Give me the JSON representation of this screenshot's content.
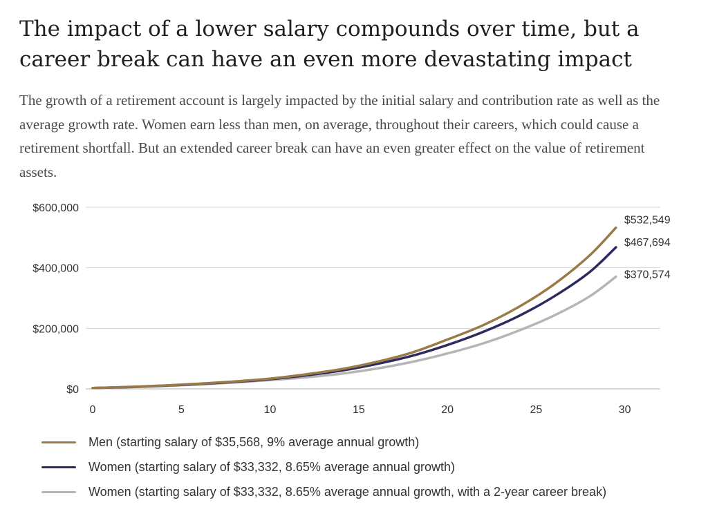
{
  "page": {
    "title": "The impact of a lower salary compounds over time, but a career break can have an even more devastating impact",
    "subtitle": "The growth of a retirement account is largely impacted by the initial salary and contribution rate as well as the average growth rate. Women earn less than men, on average, throughout their careers, which could cause a retirement shortfall. But an extended career break can have an even greater effect on the value of retirement assets."
  },
  "chart_data": {
    "type": "line",
    "title": "",
    "xlabel": "",
    "ylabel": "",
    "xlim": [
      0,
      32
    ],
    "ylim": [
      0,
      600000
    ],
    "xticks": [
      0,
      5,
      10,
      15,
      20,
      25,
      30
    ],
    "xtick_labels": [
      "0",
      "5",
      "10",
      "15",
      "20",
      "25",
      "30"
    ],
    "yticks": [
      0,
      200000,
      400000,
      600000
    ],
    "ytick_labels": [
      "$0",
      "$200,000",
      "$400,000",
      "$600,000"
    ],
    "grid": "horizontal",
    "legend_position": "bottom",
    "x": [
      0,
      2,
      4,
      6,
      8,
      10,
      12,
      14,
      16,
      18,
      20,
      22,
      24,
      26,
      28,
      29.5
    ],
    "series": [
      {
        "name": "Men (starting salary of $35,568, 9% average annual growth)",
        "color": "#9a7a48",
        "values": [
          3000,
          6500,
          11000,
          17000,
          24500,
          34000,
          48000,
          65000,
          89000,
          120000,
          163000,
          210000,
          270000,
          345000,
          440000,
          532549
        ],
        "end_label": "$532,549"
      },
      {
        "name": "Women (starting salary of $33,332, 8.65% average annual growth)",
        "color": "#2e2a5e",
        "values": [
          3000,
          6000,
          10500,
          16000,
          23000,
          32000,
          44500,
          60000,
          82000,
          109000,
          145000,
          188000,
          240000,
          305000,
          385000,
          467694
        ],
        "end_label": "$467,694"
      },
      {
        "name": "Women (starting salary of $33,332, 8.65% average annual growth, with a 2-year career break)",
        "color": "#b8b4b6",
        "values": [
          2800,
          5500,
          9500,
          14500,
          21000,
          29000,
          38000,
          50000,
          67000,
          89000,
          117000,
          150000,
          192000,
          242000,
          305000,
          370574
        ],
        "end_label": "$370,574"
      }
    ]
  }
}
